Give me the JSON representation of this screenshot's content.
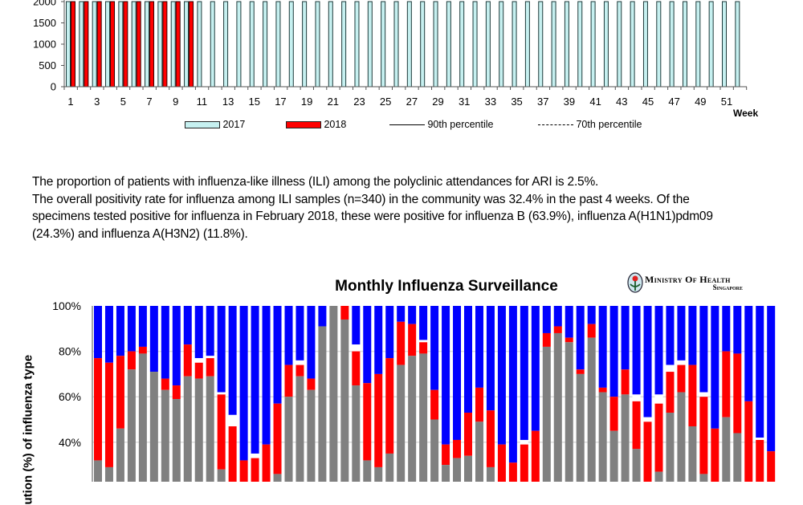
{
  "chart_data": [
    {
      "type": "bar",
      "title": "",
      "xlabel": "Week",
      "ylabel": "",
      "ylim": [
        0,
        2000
      ],
      "yticks": [
        "0",
        "500",
        "1000",
        "1500",
        "2000"
      ],
      "xtick_labels": [
        "1",
        "3",
        "5",
        "7",
        "9",
        "11",
        "13",
        "15",
        "17",
        "19",
        "21",
        "23",
        "25",
        "27",
        "29",
        "31",
        "33",
        "35",
        "37",
        "39",
        "41",
        "43",
        "45",
        "47",
        "49",
        "51"
      ],
      "categories_count": 52,
      "note_values": "all visible bars exceed the top of the visible axis (clipped at 2000)",
      "series": [
        {
          "name": "2017",
          "color": "#c6f0f0",
          "values": [
            2000,
            2000,
            2000,
            2000,
            2000,
            2000,
            2000,
            2000,
            2000,
            2000,
            2000,
            2000,
            2000,
            2000,
            2000,
            2000,
            2000,
            2000,
            2000,
            2000,
            2000,
            2000,
            2000,
            2000,
            2000,
            2000,
            2000,
            2000,
            2000,
            2000,
            2000,
            2000,
            2000,
            2000,
            2000,
            2000,
            2000,
            2000,
            2000,
            2000,
            2000,
            2000,
            2000,
            2000,
            2000,
            2000,
            2000,
            2000,
            2000,
            2000,
            2000,
            2000
          ]
        },
        {
          "name": "2018",
          "color": "#ff0000",
          "values": [
            2000,
            2000,
            2000,
            2000,
            2000,
            2000,
            2000,
            2000,
            2000,
            2000
          ]
        }
      ],
      "legend": [
        {
          "label": "2017",
          "kind": "swatch",
          "color": "#c6f0f0"
        },
        {
          "label": "2018",
          "kind": "swatch",
          "color": "#ff0000"
        },
        {
          "label": "90th percentile",
          "kind": "solid-line"
        },
        {
          "label": "70th percentile",
          "kind": "dashed-line"
        }
      ],
      "legend_position": "bottom"
    },
    {
      "type": "bar",
      "stacked": true,
      "title": "Monthly Influenza Surveillance",
      "ylabel": "ution (%) of influenza  type",
      "ylim": [
        0,
        100
      ],
      "yticks": [
        "100%",
        "80%",
        "60%",
        "40%"
      ],
      "grid": true,
      "series": [
        {
          "name": "gray",
          "color": "#808080",
          "values": [
            32,
            29,
            46,
            72,
            79,
            71,
            63,
            59,
            69,
            68,
            69,
            28,
            20,
            15,
            15,
            18,
            26,
            60,
            69,
            63,
            91,
            100,
            94,
            65,
            32,
            29,
            35,
            74,
            78,
            79,
            50,
            30,
            33,
            34,
            49,
            29,
            20,
            15,
            15,
            20,
            82,
            88,
            84,
            70,
            86,
            62,
            45,
            61,
            37,
            20,
            27,
            53,
            62,
            47,
            26,
            20,
            51,
            44,
            15,
            10,
            10
          ]
        },
        {
          "name": "red",
          "color": "#ff0000",
          "values": [
            45,
            46,
            32,
            8,
            3,
            0,
            5,
            6,
            14,
            7,
            8,
            33,
            27,
            17,
            18,
            21,
            31,
            14,
            5,
            5,
            0,
            0,
            6,
            15,
            34,
            41,
            42,
            19,
            14,
            5,
            13,
            9,
            8,
            19,
            15,
            25,
            19,
            16,
            24,
            25,
            6,
            3,
            2,
            2,
            6,
            2,
            15,
            11,
            21,
            29,
            30,
            18,
            12,
            27,
            34,
            26,
            29,
            35,
            43,
            31,
            26
          ]
        },
        {
          "name": "white",
          "color": "#ffffff",
          "values": [
            0,
            0,
            0,
            0,
            0,
            0,
            0,
            0,
            0,
            2,
            1,
            1,
            5,
            0,
            2,
            0,
            0,
            0,
            2,
            0,
            0,
            0,
            0,
            3,
            0,
            0,
            0,
            0,
            0,
            1,
            0,
            0,
            0,
            0,
            0,
            0,
            0,
            0,
            2,
            0,
            0,
            0,
            0,
            0,
            0,
            0,
            0,
            0,
            3,
            2,
            4,
            3,
            2,
            0,
            2,
            0,
            0,
            0,
            0,
            1,
            0
          ]
        },
        {
          "name": "blue",
          "color": "#0000ff",
          "values": "remainder to 100%"
        }
      ]
    }
  ],
  "legend_labels": {
    "week": "Week"
  },
  "paragraph": {
    "lines": [
      "The proportion of patients with influenza-like illness (ILI) among the polyclinic attendances for ARI is 2.5%.",
      "The overall positivity rate for influenza among ILI samples (n=340) in the community was 32.4% in the past 4 weeks. Of the",
      "specimens tested positive for influenza in February 2018, these were positive for influenza B (63.9%), influenza A(H1N1)pdm09",
      "(24.3%) and influenza A(H3N2) (11.8%)."
    ]
  },
  "logo": {
    "line1": "Ministry Of Health",
    "line2": "Singapore"
  }
}
